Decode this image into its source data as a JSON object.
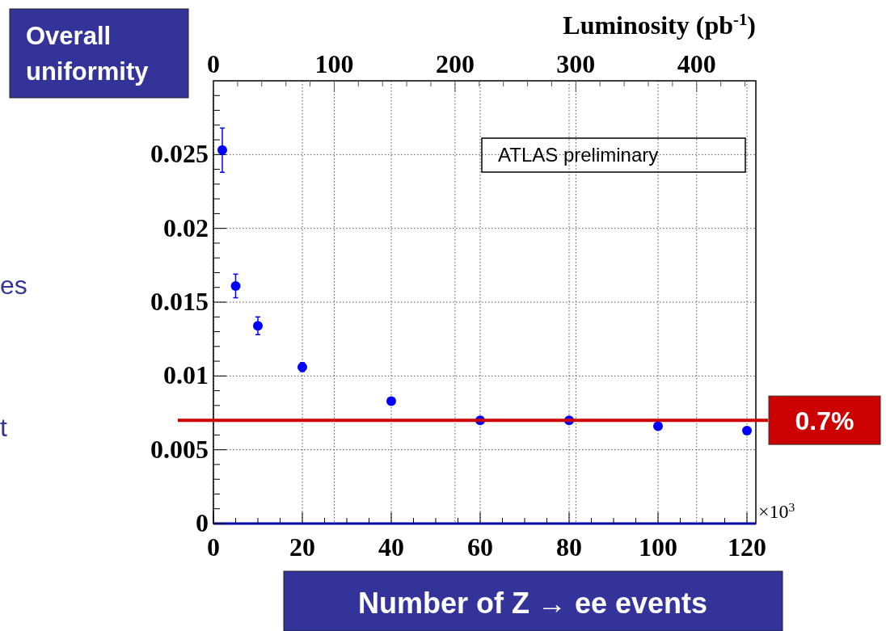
{
  "chart_data": {
    "type": "scatter",
    "title": "Overall uniformity",
    "xlabel": "Number of Z → ee events",
    "x2label": "Luminosity (pb$^{-1}$)",
    "x": [
      2,
      5,
      10,
      20,
      40,
      60,
      80,
      100,
      120
    ],
    "series": [
      {
        "color": "#0000ff",
        "values": [
          0.0253,
          0.0161,
          0.0134,
          0.0106,
          0.0083,
          0.007,
          0.007,
          0.0066,
          0.0063
        ],
        "errors": [
          0.0015,
          0.0008,
          0.0006,
          0.0003,
          null,
          null,
          null,
          null,
          null
        ]
      }
    ],
    "xlim": [
      0,
      122
    ],
    "xticks": [
      0,
      20,
      40,
      60,
      80,
      100,
      120
    ],
    "x2lim": [
      0,
      449
    ],
    "x2ticks": [
      0,
      100,
      200,
      300,
      400
    ],
    "ylim": [
      0,
      0.03
    ],
    "yticks": [
      0,
      0.005,
      0.01,
      0.015,
      0.02,
      0.025
    ],
    "grid": true,
    "marker": "circle",
    "ref_lines": [
      {
        "axis": "y",
        "value": 0.007,
        "label": "0.7%",
        "color": "#cc0000"
      }
    ],
    "annotations": [
      "ATLAS preliminary",
      "×10$^{3}$",
      "es",
      "t"
    ]
  }
}
